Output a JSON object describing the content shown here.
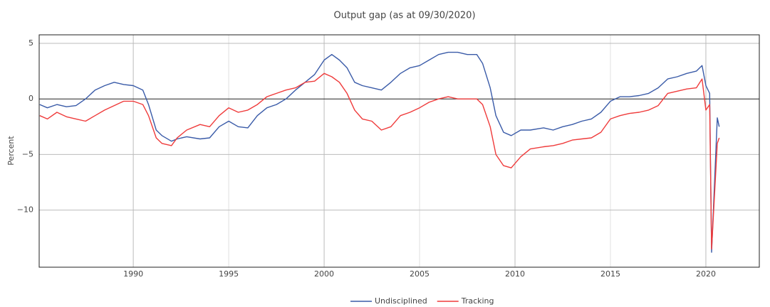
{
  "chart_data": {
    "type": "line",
    "title": "Output gap (as at 09/30/2020)",
    "y_label": "Percent",
    "x": [
      1985.1,
      1985.5,
      1986.0,
      1986.5,
      1987.0,
      1987.5,
      1988.0,
      1988.5,
      1989.0,
      1989.5,
      1990.0,
      1990.5,
      1990.8,
      1991.2,
      1991.5,
      1992.0,
      1992.3,
      1992.8,
      1993.5,
      1994.0,
      1994.5,
      1995.0,
      1995.5,
      1996.0,
      1996.5,
      1997.0,
      1997.5,
      1998.0,
      1998.5,
      1999.0,
      1999.5,
      2000.0,
      2000.4,
      2000.8,
      2001.2,
      2001.6,
      2002.0,
      2002.5,
      2003.0,
      2003.5,
      2004.0,
      2004.5,
      2005.0,
      2005.5,
      2006.0,
      2006.5,
      2007.0,
      2007.5,
      2008.0,
      2008.3,
      2008.7,
      2009.0,
      2009.4,
      2009.8,
      2010.3,
      2010.8,
      2011.5,
      2012.0,
      2012.5,
      2013.0,
      2013.5,
      2014.0,
      2014.5,
      2015.0,
      2015.5,
      2016.0,
      2016.5,
      2017.0,
      2017.5,
      2018.0,
      2018.5,
      2019.0,
      2019.5,
      2019.8,
      2020.0,
      2020.2,
      2020.3,
      2020.6,
      2020.7
    ],
    "series": [
      {
        "name": "Undisciplined",
        "color": "#3a5ba8",
        "values": [
          -0.5,
          -0.8,
          -0.5,
          -0.7,
          -0.6,
          0,
          0.8,
          1.2,
          1.5,
          1.3,
          1.2,
          0.8,
          -0.5,
          -2.8,
          -3.3,
          -3.8,
          -3.6,
          -3.4,
          -3.6,
          -3.5,
          -2.5,
          -2.0,
          -2.5,
          -2.6,
          -1.5,
          -0.8,
          -0.5,
          0,
          0.8,
          1.5,
          2.2,
          3.5,
          4.0,
          3.5,
          2.8,
          1.5,
          1.2,
          1.0,
          0.8,
          1.5,
          2.3,
          2.8,
          3.0,
          3.5,
          4.0,
          4.2,
          4.2,
          4.0,
          4.0,
          3.2,
          1.0,
          -1.5,
          -3.0,
          -3.3,
          -2.8,
          -2.8,
          -2.6,
          -2.8,
          -2.5,
          -2.3,
          -2.0,
          -1.8,
          -1.2,
          -0.2,
          0.2,
          0.2,
          0.3,
          0.5,
          1.0,
          1.8,
          2.0,
          2.3,
          2.5,
          3.0,
          1.2,
          0.5,
          -13.8,
          -1.7,
          -2.5
        ]
      },
      {
        "name": "Tracking",
        "color": "#ef3b3b",
        "values": [
          -1.5,
          -1.8,
          -1.2,
          -1.6,
          -1.8,
          -2.0,
          -1.5,
          -1.0,
          -0.6,
          -0.2,
          -0.2,
          -0.5,
          -1.5,
          -3.5,
          -4.0,
          -4.2,
          -3.5,
          -2.8,
          -2.3,
          -2.5,
          -1.5,
          -0.8,
          -1.2,
          -1.0,
          -0.5,
          0.2,
          0.5,
          0.8,
          1.0,
          1.5,
          1.6,
          2.3,
          2.0,
          1.5,
          0.5,
          -1.0,
          -1.8,
          -2.0,
          -2.8,
          -2.5,
          -1.5,
          -1.2,
          -0.8,
          -0.3,
          0,
          0.2,
          0,
          0,
          0,
          -0.5,
          -2.5,
          -5.0,
          -6.0,
          -6.2,
          -5.2,
          -4.5,
          -4.3,
          -4.2,
          -4.0,
          -3.7,
          -3.6,
          -3.5,
          -3.0,
          -1.8,
          -1.5,
          -1.3,
          -1.2,
          -1.0,
          -0.6,
          0.5,
          0.7,
          0.9,
          1.0,
          1.8,
          -1.0,
          -0.5,
          -13.5,
          -4.0,
          -3.5
        ]
      }
    ],
    "xlim": [
      1985.07,
      2022.8
    ],
    "ylim": [
      -15.14,
      5.77
    ],
    "xticks": [
      1990,
      1995,
      2000,
      2005,
      2010,
      2015,
      2020
    ],
    "yticks": [
      5,
      0,
      {
        "value": -5,
        "label": "−5"
      },
      {
        "value": -10,
        "label": "−10"
      }
    ],
    "grid": true,
    "legend": "bottom"
  }
}
